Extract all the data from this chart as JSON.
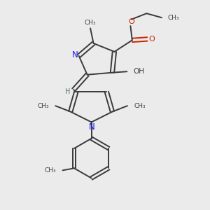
{
  "bg_color": "#ebebeb",
  "bond_color": "#3a3a3a",
  "N_color": "#1a1aee",
  "O_color": "#cc2200",
  "figsize": [
    3.0,
    3.0
  ],
  "dpi": 100,
  "xlim": [
    0,
    10
  ],
  "ylim": [
    0,
    10
  ]
}
